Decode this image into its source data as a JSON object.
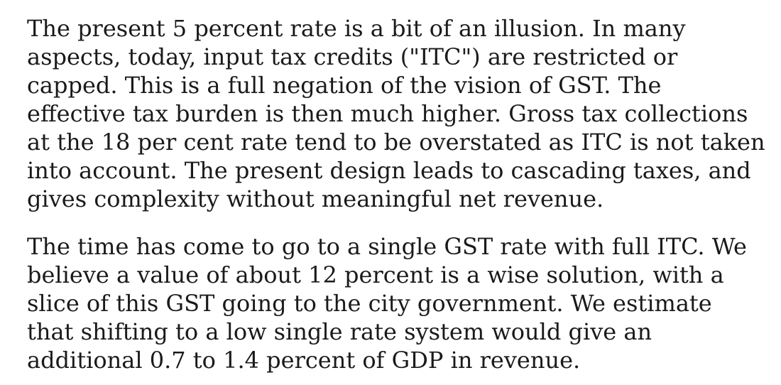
{
  "document": {
    "paragraphs": [
      {
        "lines": [
          "The present 5 percent rate is a bit of an illusion. In many",
          "aspects, today, input tax credits (\"ITC\") are restricted or",
          "capped. This is a full negation of the vision of GST. The",
          "effective tax burden is then much higher. Gross tax collections",
          "at the 18 per cent rate tend to be overstated as ITC is not taken",
          "into account. The present design leads to cascading taxes, and",
          "gives complexity without meaningful net revenue."
        ]
      },
      {
        "lines": [
          "The time has come to go to a single GST rate with full ITC. We",
          "believe a value of about 12 percent is a wise solution, with a",
          "slice of this GST going to the city government. We estimate",
          "that shifting to a low single rate system would give an",
          "additional 0.7 to 1.4 percent of GDP in revenue."
        ]
      }
    ]
  }
}
